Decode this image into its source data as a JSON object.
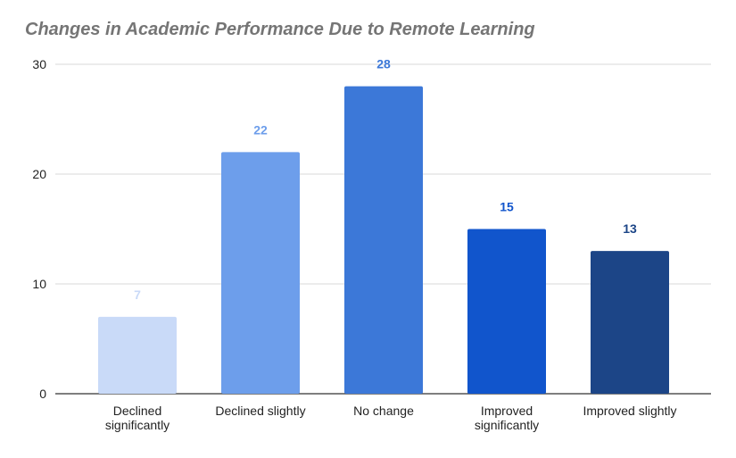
{
  "chart_data": {
    "type": "bar",
    "title": "Changes in Academic Performance Due to Remote Learning",
    "categories": [
      [
        "Declined",
        "significantly"
      ],
      [
        "Declined slightly"
      ],
      [
        "No change"
      ],
      [
        "Improved",
        "significantly"
      ],
      [
        "Improved slightly"
      ]
    ],
    "values": [
      7,
      22,
      28,
      15,
      13
    ],
    "data_labels": [
      "7",
      "22",
      "28",
      "15",
      "13"
    ],
    "colors": [
      "#c9daf8",
      "#6d9eeb",
      "#3c78d8",
      "#1155cc",
      "#1c4587"
    ],
    "ylim": [
      0,
      30
    ],
    "yticks": [
      0,
      10,
      20,
      30
    ],
    "xlabel": "",
    "ylabel": "",
    "grid": true,
    "legend": "none"
  }
}
